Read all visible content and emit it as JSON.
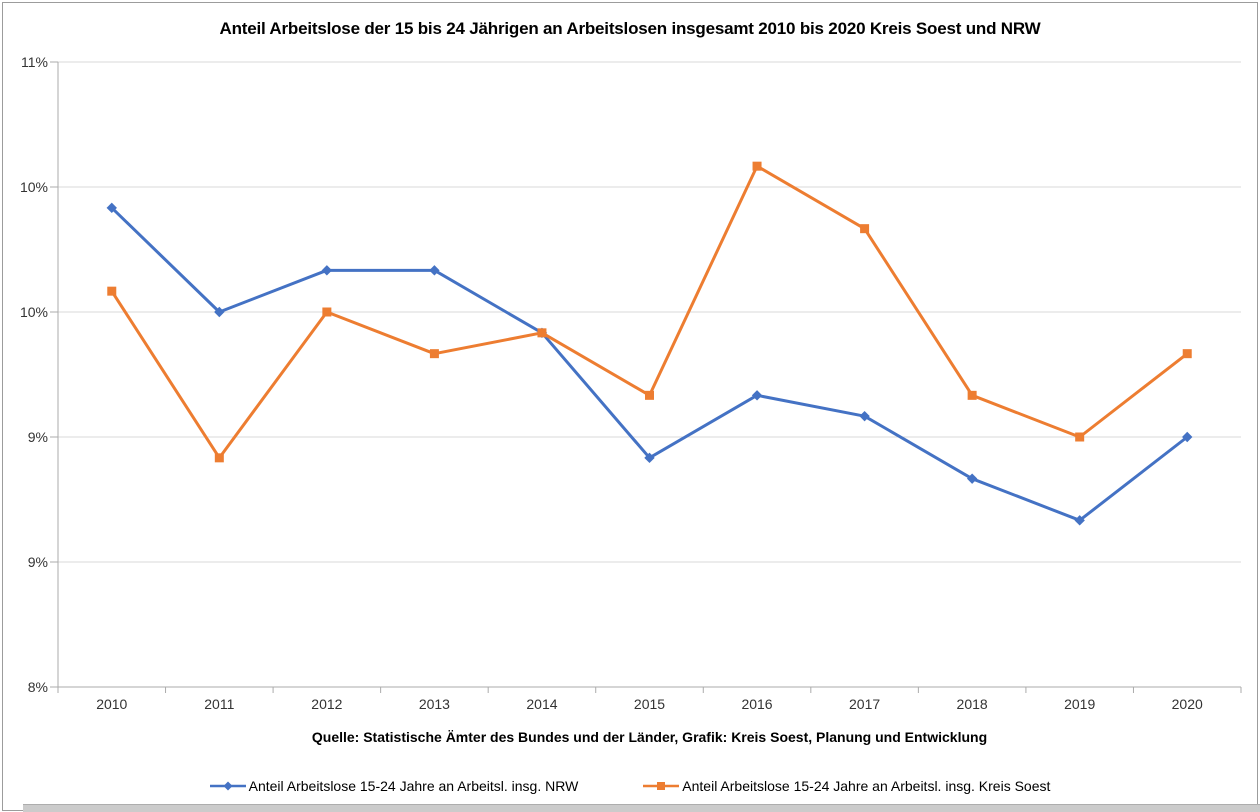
{
  "title": "Anteil Arbeitslose der 15 bis 24 Jährigen an Arbeitslosen insgesamt 2010 bis 2020 Kreis Soest und NRW",
  "source_caption": "Quelle: Statistische Ämter des Bundes und der Länder, Grafik: Kreis Soest, Planung und Entwicklung",
  "chart_data": {
    "type": "line",
    "title": "Anteil Arbeitslose der 15 bis 24 Jährigen an Arbeitslosen insgesamt 2010 bis 2020 Kreis Soest und NRW",
    "categories": [
      "2010",
      "2011",
      "2012",
      "2013",
      "2014",
      "2015",
      "2016",
      "2017",
      "2018",
      "2019",
      "2020"
    ],
    "series": [
      {
        "id": "nrw",
        "name": "Anteil Arbeitslose 15-24 Jahre an Arbeitsl. insg. NRW",
        "color": "#4472C4",
        "marker": "diamond",
        "values": [
          10.3,
          9.8,
          10.0,
          10.0,
          9.7,
          9.1,
          9.4,
          9.3,
          9.0,
          8.8,
          9.2
        ]
      },
      {
        "id": "kreis-soest",
        "name": "Anteil Arbeitslose 15-24 Jahre an Arbeitsl. insg. Kreis Soest",
        "color": "#ED7D31",
        "marker": "square",
        "values": [
          9.9,
          9.1,
          9.8,
          9.6,
          9.7,
          9.4,
          10.5,
          10.2,
          9.4,
          9.2,
          9.6
        ]
      }
    ],
    "ylim": [
      8,
      11
    ],
    "y_ticks": [
      {
        "value": 11.0,
        "label": "11%"
      },
      {
        "value": 10.4,
        "label": "10%"
      },
      {
        "value": 9.8,
        "label": "10%"
      },
      {
        "value": 9.2,
        "label": "9%"
      },
      {
        "value": 8.6,
        "label": "9%"
      },
      {
        "value": 8.0,
        "label": "8%"
      }
    ],
    "grid": true,
    "legend_position": "bottom",
    "unit": "%"
  },
  "colors": {
    "gridline": "#d9d9d9",
    "axis": "#ababab",
    "tick_text": "#333333",
    "frame": "#9c9c9c",
    "scrollbar": "#cbcbcb",
    "nrw_blue": "#4472C4",
    "soest_orange": "#ED7D31"
  }
}
